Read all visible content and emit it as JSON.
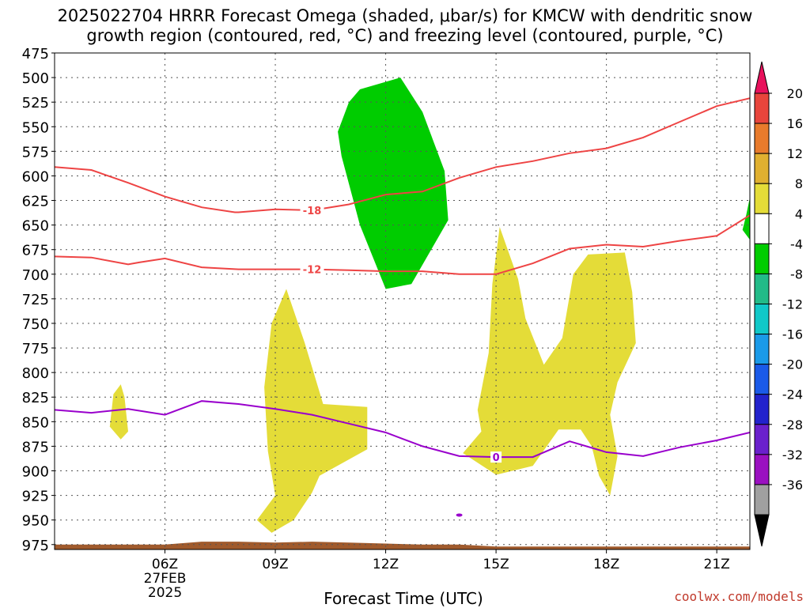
{
  "title_line1": "2025022704 HRRR Forecast Omega (shaded, μbar/s) for KMCW with dendritic snow",
  "title_line2": "growth region (contoured, red, °C) and freezing level (contoured, purple, °C)",
  "xlabel": "Forecast Time (UTC)",
  "credit": "coolwx.com/models",
  "colors": {
    "green": "#00cc00",
    "yellow": "#e4dc38",
    "dendritic_contour": "#ee4444",
    "freezing_contour": "#9900cc",
    "ground": "#a05a2c"
  },
  "chart_data": {
    "type": "contour",
    "x_unit": "forecast hour from 2025022704 (UTC)",
    "xlim": [
      3,
      21.9
    ],
    "ylim_hPa": [
      475,
      980
    ],
    "y_ticks": [
      475,
      500,
      525,
      550,
      575,
      600,
      625,
      650,
      675,
      700,
      725,
      750,
      775,
      800,
      825,
      850,
      875,
      900,
      925,
      950,
      975
    ],
    "x_ticks": [
      {
        "x": 6,
        "label": "06Z",
        "sub1": "27FEB",
        "sub2": "2025"
      },
      {
        "x": 9,
        "label": "09Z"
      },
      {
        "x": 12,
        "label": "12Z"
      },
      {
        "x": 15,
        "label": "15Z"
      },
      {
        "x": 18,
        "label": "18Z"
      },
      {
        "x": 21,
        "label": "21Z"
      }
    ],
    "grid": true,
    "colorbar": {
      "labels": [
        "20",
        "16",
        "12",
        "8",
        "4",
        "-4",
        "-8",
        "-12",
        "-16",
        "-20",
        "-24",
        "-28",
        "-32",
        "-36"
      ],
      "colors": [
        "#e8115c",
        "#e8453c",
        "#e87b2c",
        "#e0b030",
        "#e4dc38",
        "#ffffff",
        "#00cc00",
        "#22bb88",
        "#10c8c8",
        "#1a9ae8",
        "#1a5ae8",
        "#2222cc",
        "#6a20cc",
        "#9a10c0",
        "#a0a0a0",
        "#000000"
      ]
    },
    "contours": [
      {
        "name": "-18",
        "label": "-18",
        "color": "#ee4444",
        "points": [
          [
            3,
            591
          ],
          [
            4,
            594
          ],
          [
            5,
            607
          ],
          [
            6,
            621
          ],
          [
            7,
            632
          ],
          [
            7.9,
            637
          ],
          [
            8,
            637
          ],
          [
            9,
            634
          ],
          [
            10,
            635
          ],
          [
            11,
            629
          ],
          [
            12,
            619
          ],
          [
            13,
            616
          ],
          [
            14,
            602
          ],
          [
            15,
            591
          ],
          [
            16,
            585
          ],
          [
            17,
            577
          ],
          [
            18,
            572
          ],
          [
            19,
            561
          ],
          [
            20,
            545
          ],
          [
            21,
            529
          ],
          [
            21.9,
            521
          ]
        ],
        "label_at": [
          10,
          635
        ]
      },
      {
        "name": "-12",
        "label": "-12",
        "color": "#ee4444",
        "points": [
          [
            3,
            682
          ],
          [
            4,
            683
          ],
          [
            5,
            690
          ],
          [
            5.3,
            688
          ],
          [
            6,
            684
          ],
          [
            7,
            693
          ],
          [
            8,
            695
          ],
          [
            9,
            695
          ],
          [
            10,
            695
          ],
          [
            11,
            696
          ],
          [
            12,
            697
          ],
          [
            13,
            697
          ],
          [
            14,
            700
          ],
          [
            15,
            700
          ],
          [
            16,
            689
          ],
          [
            17,
            674
          ],
          [
            18,
            670
          ],
          [
            19,
            672
          ],
          [
            20,
            666
          ],
          [
            21,
            661
          ],
          [
            21.9,
            640
          ]
        ],
        "label_at": [
          10,
          695
        ]
      },
      {
        "name": "0",
        "label": "0",
        "color": "#9900cc",
        "points": [
          [
            3,
            838
          ],
          [
            4,
            841
          ],
          [
            5,
            837
          ],
          [
            6,
            843
          ],
          [
            7,
            829
          ],
          [
            8,
            832
          ],
          [
            9,
            837
          ],
          [
            10,
            843
          ],
          [
            11,
            852
          ],
          [
            12,
            861
          ],
          [
            13,
            875
          ],
          [
            14,
            885
          ],
          [
            15,
            886
          ],
          [
            16,
            886
          ],
          [
            17,
            870
          ],
          [
            18,
            881
          ],
          [
            19,
            885
          ],
          [
            20,
            876
          ],
          [
            21,
            869
          ],
          [
            21.9,
            861
          ]
        ],
        "label_at": [
          15,
          886
        ]
      }
    ],
    "shaded": [
      {
        "value_range": "-8 to -4",
        "color": "#00cc00",
        "polygon": [
          [
            12.4,
            500
          ],
          [
            13,
            535
          ],
          [
            13.6,
            595
          ],
          [
            13.7,
            645
          ],
          [
            12.7,
            710
          ],
          [
            12,
            715
          ],
          [
            11.3,
            650
          ],
          [
            10.8,
            580
          ],
          [
            10.7,
            555
          ],
          [
            11,
            525
          ],
          [
            11.3,
            512
          ]
        ]
      },
      {
        "value_range": "-8 to -4",
        "color": "#00cc00",
        "polygon": [
          [
            21.9,
            622
          ],
          [
            21.9,
            665
          ],
          [
            21.7,
            655
          ],
          [
            21.8,
            640
          ]
        ]
      },
      {
        "value_range": "4 to 8",
        "color": "#e4dc38",
        "polygon": [
          [
            4.8,
            812
          ],
          [
            4.9,
            825
          ],
          [
            5,
            860
          ],
          [
            4.8,
            868
          ],
          [
            4.5,
            855
          ],
          [
            4.6,
            822
          ]
        ]
      },
      {
        "value_range": "4 to 8",
        "color": "#e4dc38",
        "polygon": [
          [
            9.3,
            715
          ],
          [
            9.8,
            770
          ],
          [
            10.3,
            832
          ],
          [
            11.5,
            835
          ],
          [
            11.5,
            878
          ],
          [
            10.2,
            905
          ],
          [
            10,
            922
          ],
          [
            9.5,
            950
          ],
          [
            8.9,
            963
          ],
          [
            8.5,
            950
          ],
          [
            9,
            925
          ],
          [
            8.8,
            880
          ],
          [
            8.7,
            815
          ],
          [
            8.9,
            750
          ]
        ]
      },
      {
        "value_range": "4 to 8",
        "color": "#e4dc38",
        "polygon": [
          [
            15.1,
            652
          ],
          [
            15.6,
            705
          ],
          [
            15.8,
            745
          ],
          [
            16.3,
            792
          ],
          [
            16.8,
            765
          ],
          [
            17.1,
            700
          ],
          [
            17.5,
            680
          ],
          [
            18.5,
            678
          ],
          [
            18.7,
            718
          ],
          [
            18.8,
            770
          ],
          [
            18.3,
            810
          ],
          [
            18.1,
            843
          ],
          [
            18.3,
            885
          ],
          [
            18.1,
            925
          ],
          [
            17.8,
            905
          ],
          [
            17.6,
            875
          ],
          [
            17.3,
            858
          ],
          [
            16.7,
            858
          ],
          [
            16,
            895
          ],
          [
            15,
            904
          ],
          [
            14.1,
            882
          ],
          [
            14.6,
            860
          ],
          [
            14.5,
            838
          ],
          [
            14.8,
            780
          ],
          [
            14.9,
            710
          ]
        ]
      }
    ],
    "points": [
      {
        "x": 14,
        "y": 945,
        "color": "#9900cc"
      }
    ],
    "ground": {
      "color": "#a05a2c",
      "top": [
        [
          3,
          975
        ],
        [
          6,
          975
        ],
        [
          7,
          972
        ],
        [
          8,
          972
        ],
        [
          9,
          973
        ],
        [
          10,
          972
        ],
        [
          11,
          973
        ],
        [
          12,
          974
        ],
        [
          13,
          975
        ],
        [
          14,
          975
        ],
        [
          15,
          977
        ],
        [
          16,
          977
        ],
        [
          21.9,
          977
        ]
      ]
    }
  }
}
